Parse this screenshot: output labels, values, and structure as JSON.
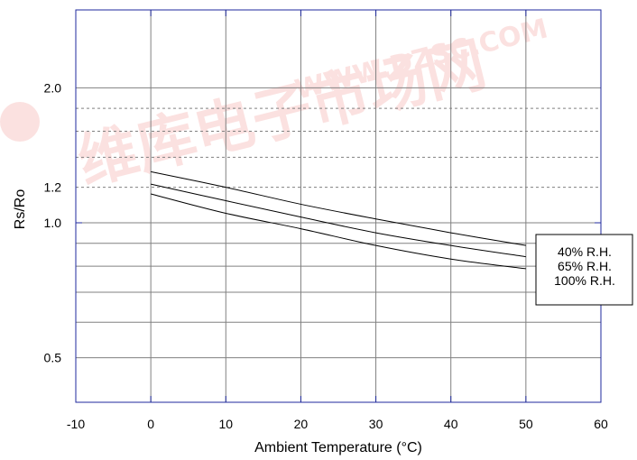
{
  "chart_data": {
    "type": "line",
    "xlabel": "Ambient Temperature (°C)",
    "ylabel": "Rs/Ro",
    "xlim": [
      -10,
      60
    ],
    "x_ticks": [
      "-10",
      "0",
      "10",
      "20",
      "30",
      "40",
      "50",
      "60"
    ],
    "y_tick_labels": [
      {
        "value": 2.0,
        "label": "2.0"
      },
      {
        "value": 1.2,
        "label": "1.2"
      },
      {
        "value": 1.0,
        "label": "1.0"
      },
      {
        "value": 0.5,
        "label": "0.5"
      }
    ],
    "y_scale": "log",
    "grid": true,
    "legend_position": "right",
    "series": [
      {
        "name": "40% R.H.",
        "x": [
          0,
          10,
          20,
          30,
          40,
          50
        ],
        "y": [
          1.3,
          1.2,
          1.1,
          1.02,
          0.95,
          0.89
        ]
      },
      {
        "name": "65% R.H.",
        "x": [
          0,
          10,
          20,
          30,
          40,
          50
        ],
        "y": [
          1.22,
          1.12,
          1.03,
          0.95,
          0.89,
          0.84
        ]
      },
      {
        "name": "100% R.H.",
        "x": [
          0,
          10,
          20,
          30,
          40,
          50
        ],
        "y": [
          1.16,
          1.05,
          0.97,
          0.89,
          0.83,
          0.79
        ]
      }
    ]
  },
  "watermark": {
    "text_cn": "维库电子市场网",
    "text_url": "WWW.DZSC.COM",
    "color": "#e3241b"
  }
}
